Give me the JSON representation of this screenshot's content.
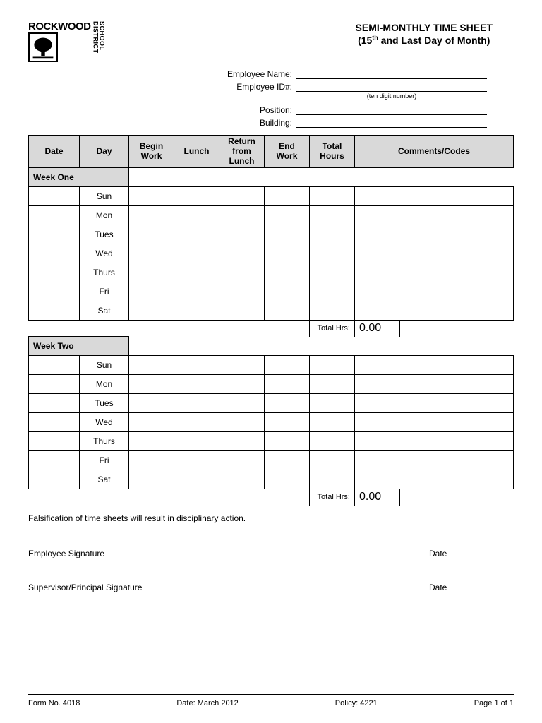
{
  "logo": {
    "top": "ROCKWOOD",
    "side1": "SCHOOL",
    "side2": "DISTRICT"
  },
  "title": {
    "line1": "SEMI-MONTHLY TIME SHEET",
    "line2_pre": "(15",
    "line2_sup": "th",
    "line2_post": " and Last Day of Month)"
  },
  "fields": {
    "emp_name": "Employee Name:",
    "emp_id": "Employee ID#:",
    "emp_id_hint": "(ten digit number)",
    "position": "Position:",
    "building": "Building:"
  },
  "table": {
    "headers": [
      "Date",
      "Day",
      "Begin Work",
      "Lunch",
      "Return from Lunch",
      "End Work",
      "Total Hours",
      "Comments/Codes"
    ],
    "week1_label": "Week One",
    "week2_label": "Week Two",
    "days": [
      "Sun",
      "Mon",
      "Tues",
      "Wed",
      "Thurs",
      "Fri",
      "Sat"
    ],
    "total_hrs_label": "Total Hrs:",
    "total_hrs_val1": "0.00",
    "total_hrs_val2": "0.00"
  },
  "disclaimer": "Falsification of time sheets will result in disciplinary action.",
  "signatures": {
    "emp": "Employee Signature",
    "sup": "Supervisor/Principal Signature",
    "date": "Date"
  },
  "footer": {
    "form": "Form No. 4018",
    "date": "Date: March 2012",
    "policy": "Policy: 4221",
    "page": "Page 1 of 1"
  }
}
